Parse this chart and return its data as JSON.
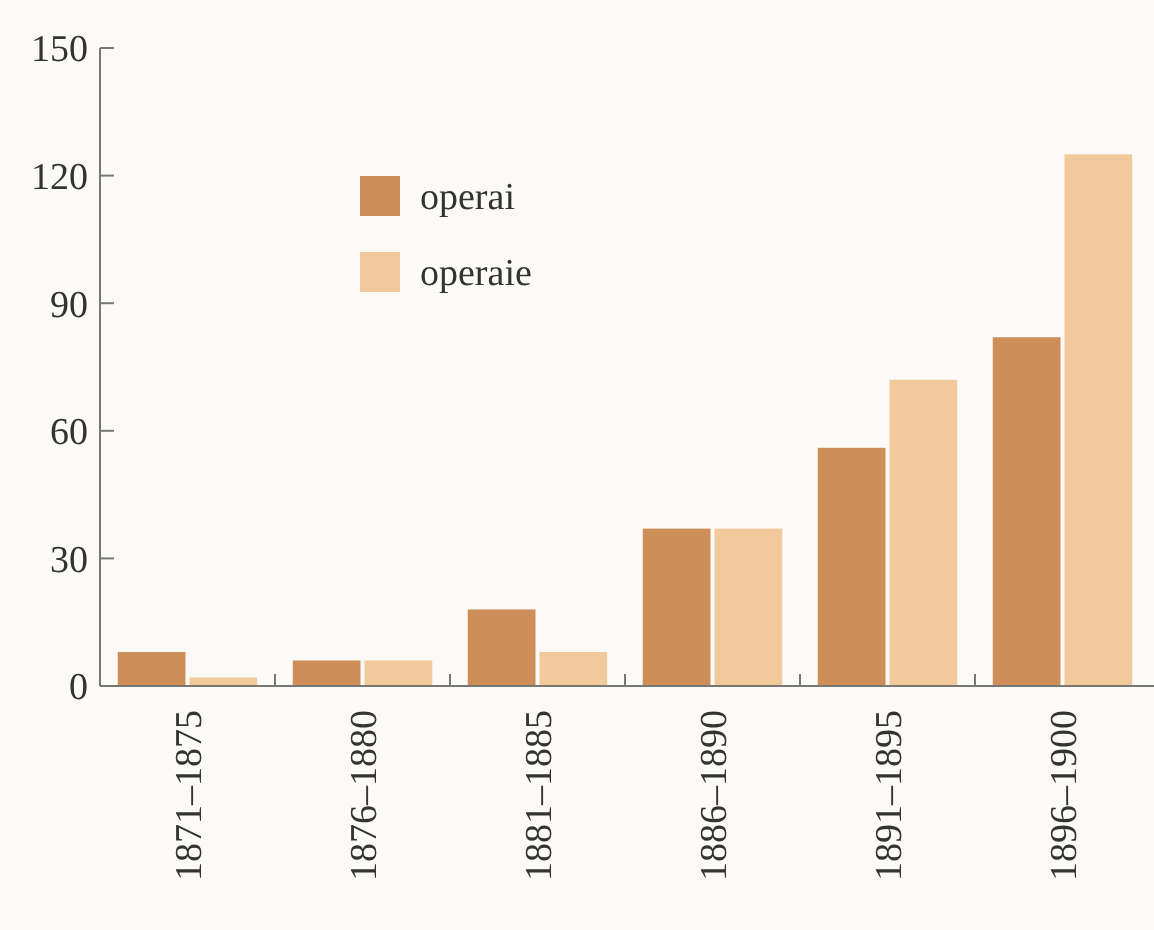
{
  "chart_data": {
    "type": "bar",
    "categories": [
      "1871–1875",
      "1876–1880",
      "1881–1885",
      "1886–1890",
      "1891–1895",
      "1896–1900"
    ],
    "series": [
      {
        "name": "operai",
        "color": "#cd8f57",
        "values": [
          8,
          6,
          18,
          37,
          56,
          82
        ]
      },
      {
        "name": "operaie",
        "color": "#f1c99b",
        "values": [
          2,
          6,
          8,
          37,
          72,
          125
        ]
      }
    ],
    "ylim": [
      0,
      150
    ],
    "yticks": [
      0,
      30,
      60,
      90,
      120,
      150
    ],
    "grid": false,
    "legend": "top left"
  }
}
